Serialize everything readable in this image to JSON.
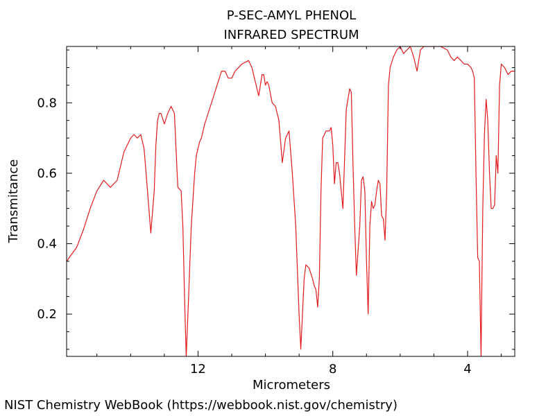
{
  "chart_data": {
    "type": "line",
    "title": "P-SEC-AMYL PHENOL",
    "subtitle": "INFRARED SPECTRUM",
    "xlabel": "Micrometers",
    "ylabel": "Transmitance",
    "x_reversed": true,
    "xlim": [
      15.9,
      2.6
    ],
    "ylim": [
      0.08,
      0.96
    ],
    "x_ticks": [
      12,
      8,
      4
    ],
    "y_ticks": [
      0.2,
      0.4,
      0.6,
      0.8
    ],
    "grid": false,
    "line_color": "#e31a1c",
    "series": [
      {
        "x": [
          15.9,
          15.6,
          15.4,
          15.2,
          15.0,
          14.8,
          14.6,
          14.4,
          14.2,
          14.0,
          13.9,
          13.8,
          13.7,
          13.6,
          13.5,
          13.4,
          13.3,
          13.25,
          13.2,
          13.15,
          13.1,
          13.0,
          12.9,
          12.8,
          12.7,
          12.6,
          12.5,
          12.45,
          12.4,
          12.35,
          12.3,
          12.2,
          12.1,
          12.05,
          12.0,
          11.95,
          11.9,
          11.8,
          11.7,
          11.5,
          11.3,
          11.2,
          11.1,
          11.0,
          10.9,
          10.7,
          10.5,
          10.4,
          10.3,
          10.2,
          10.1,
          10.05,
          10.0,
          9.95,
          9.9,
          9.8,
          9.7,
          9.6,
          9.5,
          9.4,
          9.3,
          9.2,
          9.1,
          9.0,
          8.95,
          8.9,
          8.85,
          8.8,
          8.7,
          8.6,
          8.55,
          8.5,
          8.45,
          8.4,
          8.35,
          8.3,
          8.2,
          8.1,
          8.05,
          8.0,
          7.95,
          7.9,
          7.85,
          7.8,
          7.7,
          7.6,
          7.5,
          7.45,
          7.4,
          7.35,
          7.3,
          7.2,
          7.15,
          7.1,
          7.05,
          7.0,
          6.95,
          6.9,
          6.85,
          6.8,
          6.75,
          6.7,
          6.65,
          6.6,
          6.55,
          6.5,
          6.45,
          6.4,
          6.35,
          6.3,
          6.2,
          6.1,
          6.0,
          5.9,
          5.8,
          5.7,
          5.6,
          5.5,
          5.45,
          5.4,
          5.3,
          5.2,
          5.0,
          4.8,
          4.6,
          4.5,
          4.4,
          4.3,
          4.2,
          4.1,
          4.0,
          3.9,
          3.85,
          3.8,
          3.75,
          3.7,
          3.65,
          3.6,
          3.55,
          3.5,
          3.45,
          3.4,
          3.35,
          3.3,
          3.25,
          3.2,
          3.15,
          3.1,
          3.05,
          3.0,
          2.9,
          2.8,
          2.7,
          2.6
        ],
        "y": [
          0.35,
          0.39,
          0.44,
          0.5,
          0.55,
          0.58,
          0.56,
          0.58,
          0.66,
          0.7,
          0.71,
          0.7,
          0.71,
          0.67,
          0.55,
          0.43,
          0.55,
          0.68,
          0.75,
          0.77,
          0.77,
          0.74,
          0.77,
          0.79,
          0.77,
          0.56,
          0.55,
          0.45,
          0.25,
          0.08,
          0.2,
          0.45,
          0.6,
          0.65,
          0.67,
          0.69,
          0.7,
          0.74,
          0.77,
          0.83,
          0.89,
          0.89,
          0.87,
          0.87,
          0.89,
          0.91,
          0.92,
          0.9,
          0.86,
          0.82,
          0.88,
          0.88,
          0.85,
          0.86,
          0.85,
          0.8,
          0.79,
          0.75,
          0.63,
          0.7,
          0.72,
          0.6,
          0.45,
          0.2,
          0.1,
          0.2,
          0.3,
          0.34,
          0.33,
          0.3,
          0.28,
          0.27,
          0.22,
          0.3,
          0.55,
          0.7,
          0.72,
          0.72,
          0.73,
          0.68,
          0.57,
          0.63,
          0.63,
          0.6,
          0.5,
          0.78,
          0.84,
          0.83,
          0.62,
          0.45,
          0.31,
          0.45,
          0.58,
          0.59,
          0.55,
          0.35,
          0.2,
          0.45,
          0.52,
          0.5,
          0.51,
          0.55,
          0.58,
          0.57,
          0.48,
          0.47,
          0.41,
          0.55,
          0.85,
          0.9,
          0.93,
          0.95,
          0.96,
          0.94,
          0.95,
          0.96,
          0.93,
          0.89,
          0.92,
          0.95,
          0.96,
          0.96,
          0.96,
          0.96,
          0.95,
          0.93,
          0.92,
          0.93,
          0.92,
          0.91,
          0.91,
          0.9,
          0.89,
          0.87,
          0.6,
          0.36,
          0.35,
          0.07,
          0.5,
          0.71,
          0.81,
          0.75,
          0.6,
          0.5,
          0.5,
          0.51,
          0.65,
          0.6,
          0.85,
          0.91,
          0.9,
          0.88,
          0.89,
          0.89
        ]
      }
    ]
  },
  "footer": {
    "credit": "NIST Chemistry WebBook (https://webbook.nist.gov/chemistry)"
  }
}
